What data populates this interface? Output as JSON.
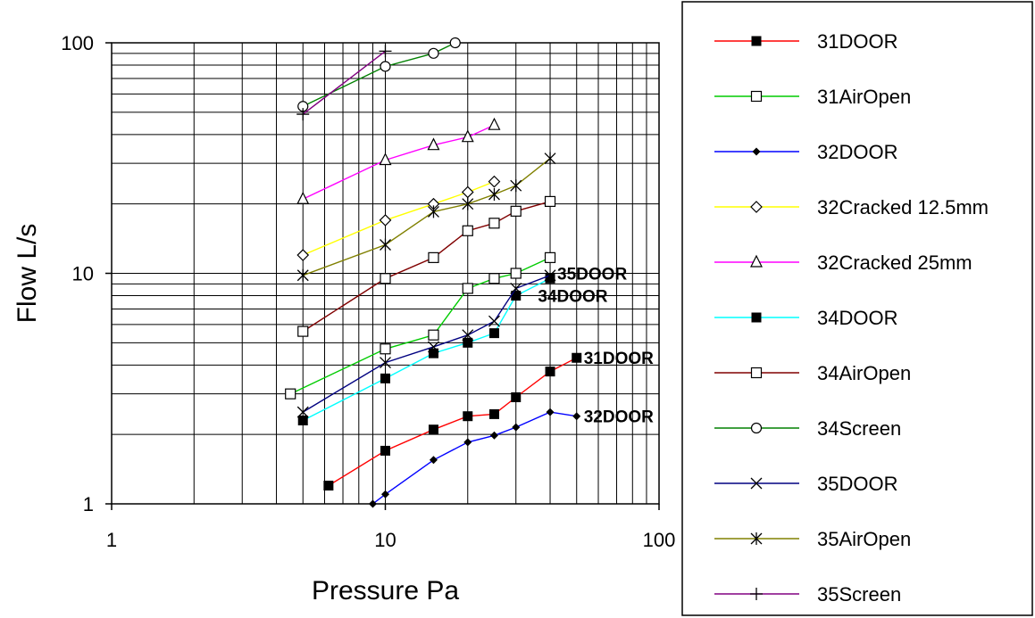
{
  "chart_data": {
    "type": "line",
    "title": "",
    "xlabel": "Pressure Pa",
    "ylabel": "Flow L/s",
    "xscale": "log",
    "yscale": "log",
    "xlim": [
      1,
      100
    ],
    "ylim": [
      1,
      100
    ],
    "x_ticks": [
      1,
      10,
      100
    ],
    "x_tick_labels": [
      "1",
      "10",
      "100"
    ],
    "y_ticks": [
      1,
      10,
      100
    ],
    "y_tick_labels": [
      "1",
      "10",
      "100"
    ],
    "grid": true,
    "legend_position": "right",
    "series": [
      {
        "name": "31DOOR",
        "color": "#ff0000",
        "marker": "filled-square",
        "x": [
          6.2,
          10,
          15,
          20,
          25,
          30,
          40,
          50
        ],
        "y": [
          1.2,
          1.7,
          2.1,
          2.4,
          2.45,
          2.9,
          3.75,
          4.3
        ]
      },
      {
        "name": "31AirOpen",
        "color": "#00cc00",
        "marker": "open-square",
        "x": [
          4.5,
          10,
          15,
          20,
          25,
          30,
          40
        ],
        "y": [
          3.0,
          4.7,
          5.4,
          8.6,
          9.5,
          10.0,
          11.7
        ]
      },
      {
        "name": "32DOOR",
        "color": "#0000ff",
        "marker": "filled-diamond",
        "x": [
          9,
          10,
          15,
          20,
          25,
          30,
          40,
          50
        ],
        "y": [
          1.0,
          1.1,
          1.55,
          1.85,
          1.98,
          2.15,
          2.5,
          2.4
        ]
      },
      {
        "name": "32Cracked 12.5mm",
        "color": "#ffff00",
        "marker": "open-diamond",
        "x": [
          5,
          10,
          15,
          20,
          25
        ],
        "y": [
          12.0,
          17.0,
          20.0,
          22.5,
          25.0
        ]
      },
      {
        "name": "32Cracked 25mm",
        "color": "#ff00ff",
        "marker": "open-triangle",
        "x": [
          5,
          10,
          15,
          20,
          25
        ],
        "y": [
          21.0,
          31.0,
          36.0,
          39.0,
          44.0
        ]
      },
      {
        "name": "34DOOR",
        "color": "#00ffff",
        "marker": "filled-square",
        "x": [
          5,
          10,
          15,
          20,
          25,
          30,
          40
        ],
        "y": [
          2.3,
          3.5,
          4.5,
          5.0,
          5.5,
          8.0,
          9.5
        ]
      },
      {
        "name": "34AirOpen",
        "color": "#800000",
        "marker": "open-square",
        "x": [
          5,
          10,
          15,
          20,
          25,
          30,
          40
        ],
        "y": [
          5.6,
          9.5,
          11.7,
          15.3,
          16.5,
          18.6,
          20.5
        ]
      },
      {
        "name": "34Screen",
        "color": "#008000",
        "marker": "open-circle",
        "x": [
          5,
          10,
          15,
          18
        ],
        "y": [
          53.0,
          79.0,
          90.0,
          100.0
        ]
      },
      {
        "name": "35DOOR",
        "color": "#000080",
        "marker": "x",
        "x": [
          5,
          10,
          15,
          20,
          25,
          30,
          40
        ],
        "y": [
          2.5,
          4.1,
          4.8,
          5.4,
          6.2,
          8.6,
          9.8
        ]
      },
      {
        "name": "35AirOpen",
        "color": "#808000",
        "marker": "asterisk",
        "x": [
          5,
          10,
          15,
          20,
          25,
          30,
          40
        ],
        "y": [
          9.8,
          13.3,
          18.5,
          20.0,
          22.0,
          24.0,
          31.5
        ]
      },
      {
        "name": "35Screen",
        "color": "#800080",
        "marker": "plus",
        "x": [
          5,
          10
        ],
        "y": [
          49.0,
          92.0
        ]
      }
    ],
    "annotations": [
      {
        "text": "35DOOR",
        "x": 40,
        "y": 10.0
      },
      {
        "text": "34DOOR",
        "x": 34,
        "y": 8.0
      },
      {
        "text": "31DOOR",
        "x": 50,
        "y": 4.3
      },
      {
        "text": "32DOOR",
        "x": 50,
        "y": 2.4
      }
    ]
  }
}
